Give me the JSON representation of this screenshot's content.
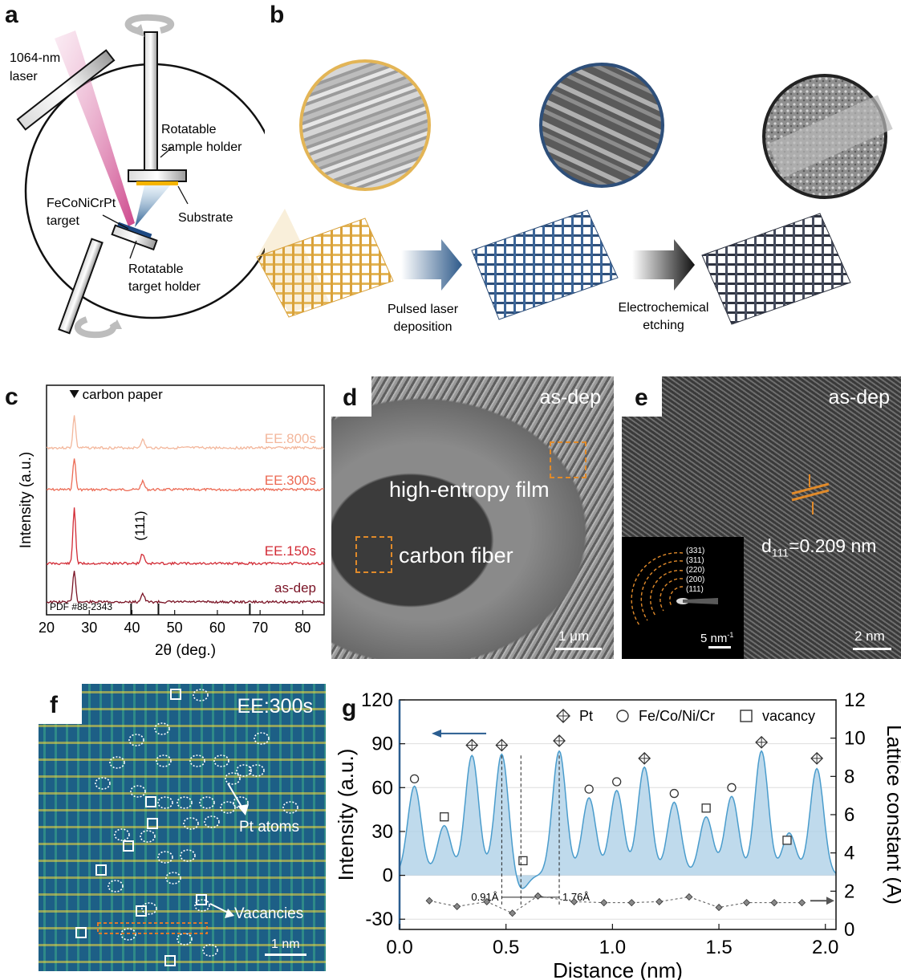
{
  "panels": {
    "a": {
      "label": "a",
      "laser": [
        "1064-nm",
        "laser"
      ],
      "sample_holder": [
        "Rotatable",
        "sample holder"
      ],
      "substrate": "Substrate",
      "target": [
        "FeCoNiCrPt",
        "target"
      ],
      "target_holder": [
        "Rotatable",
        "target holder"
      ]
    },
    "b": {
      "label": "b",
      "step1": [
        "Pulsed laser",
        "deposition"
      ],
      "step2": [
        "Electrochemical",
        "etching"
      ],
      "colors": {
        "gold": "#e3b556",
        "blue": "#2e4f7a",
        "dark": "#2e3340"
      }
    },
    "c": {
      "label": "c"
    },
    "d": {
      "label": "d",
      "tag": "as-dep",
      "film": "high-entropy film",
      "fiber": "carbon fiber",
      "scale": "1 μm"
    },
    "e": {
      "label": "e",
      "tag": "as-dep",
      "spacing_main": "d",
      "spacing_sub": "111",
      "spacing_value": "=0.209 nm",
      "rings": [
        "(331)",
        "(311)",
        "(220)",
        "(200)",
        "(111)"
      ],
      "inset_scale_main": "5 nm",
      "inset_scale_sup": "-1",
      "scale": "2 nm"
    },
    "f": {
      "label": "f",
      "tag": "EE:300s",
      "pt_atoms": "Pt atoms",
      "vacancies": "Vacancies",
      "scale": "1 nm"
    },
    "g": {
      "label": "g"
    }
  },
  "chart_data": [
    {
      "id": "c",
      "type": "line",
      "xlabel": "2θ (deg.)",
      "ylabel": "Intensity (a.u.)",
      "xlim": [
        20,
        85
      ],
      "xticks": [
        20,
        30,
        40,
        50,
        60,
        70,
        80
      ],
      "legend_note": "carbon paper",
      "peak_label": "(111)",
      "reference": {
        "label": "PDF #88-2343",
        "positions": [
          39.8,
          46.2,
          67.6
        ]
      },
      "series": [
        {
          "name": "EE.800s",
          "color": "#f3b79c",
          "peaks": [
            26.5,
            42.5
          ]
        },
        {
          "name": "EE.300s",
          "color": "#ec6b55",
          "peaks": [
            26.5,
            42.5
          ]
        },
        {
          "name": "EE.150s",
          "color": "#d22b35",
          "peaks": [
            26.5,
            42.5
          ]
        },
        {
          "name": "as-dep",
          "color": "#7a1426",
          "peaks": [
            26.5,
            42.5
          ]
        }
      ]
    },
    {
      "id": "g",
      "type": "area",
      "xlabel": "Distance (nm)",
      "ylabel": "Intensity (a.u.)",
      "y2label": "Lattice constant (Å)",
      "xlim": [
        0,
        2.05
      ],
      "ylim": [
        -37,
        120
      ],
      "y2lim": [
        0,
        12
      ],
      "xticks": [
        0.0,
        0.5,
        1.0,
        1.5,
        2.0
      ],
      "yticks": [
        -30,
        0,
        30,
        60,
        90,
        120
      ],
      "y2ticks": [
        0,
        2,
        4,
        6,
        8,
        10,
        12
      ],
      "legend": [
        "Pt",
        "Fe/Co/Ni/Cr",
        "vacancy"
      ],
      "annotations": [
        "0.91Å",
        "1.76Å"
      ],
      "intensity_peaks": [
        {
          "x": 0.07,
          "y": 61
        },
        {
          "x": 0.21,
          "y": 34
        },
        {
          "x": 0.34,
          "y": 82
        },
        {
          "x": 0.48,
          "y": 83
        },
        {
          "x": 0.57,
          "y": -10
        },
        {
          "x": 0.75,
          "y": 85
        },
        {
          "x": 0.89,
          "y": 53
        },
        {
          "x": 1.02,
          "y": 58
        },
        {
          "x": 1.15,
          "y": 74
        },
        {
          "x": 1.29,
          "y": 50
        },
        {
          "x": 1.44,
          "y": 40
        },
        {
          "x": 1.56,
          "y": 54
        },
        {
          "x": 1.7,
          "y": 85
        },
        {
          "x": 1.83,
          "y": 29
        },
        {
          "x": 1.96,
          "y": 73
        }
      ],
      "markers": [
        {
          "x": 0.07,
          "y": 66,
          "kind": "Fe/Co/Ni/Cr"
        },
        {
          "x": 0.21,
          "y": 40,
          "kind": "vacancy"
        },
        {
          "x": 0.34,
          "y": 89,
          "kind": "Pt"
        },
        {
          "x": 0.48,
          "y": 89,
          "kind": "Pt"
        },
        {
          "x": 0.58,
          "y": 10,
          "kind": "vacancy"
        },
        {
          "x": 0.75,
          "y": 92,
          "kind": "Pt"
        },
        {
          "x": 0.89,
          "y": 59,
          "kind": "Fe/Co/Ni/Cr"
        },
        {
          "x": 1.02,
          "y": 64,
          "kind": "Fe/Co/Ni/Cr"
        },
        {
          "x": 1.15,
          "y": 80,
          "kind": "Pt"
        },
        {
          "x": 1.29,
          "y": 56,
          "kind": "Fe/Co/Ni/Cr"
        },
        {
          "x": 1.44,
          "y": 46,
          "kind": "vacancy"
        },
        {
          "x": 1.56,
          "y": 60,
          "kind": "Fe/Co/Ni/Cr"
        },
        {
          "x": 1.7,
          "y": 91,
          "kind": "Pt"
        },
        {
          "x": 1.82,
          "y": 24,
          "kind": "vacancy"
        },
        {
          "x": 1.96,
          "y": 80,
          "kind": "Pt"
        }
      ],
      "lattice_constant": [
        {
          "x": 0.14,
          "y": 1.5
        },
        {
          "x": 0.27,
          "y": 1.2
        },
        {
          "x": 0.41,
          "y": 1.45
        },
        {
          "x": 0.53,
          "y": 0.85
        },
        {
          "x": 0.65,
          "y": 1.75
        },
        {
          "x": 0.82,
          "y": 1.45
        },
        {
          "x": 0.96,
          "y": 1.4
        },
        {
          "x": 1.09,
          "y": 1.4
        },
        {
          "x": 1.22,
          "y": 1.45
        },
        {
          "x": 1.36,
          "y": 1.7
        },
        {
          "x": 1.5,
          "y": 1.15
        },
        {
          "x": 1.63,
          "y": 1.4
        },
        {
          "x": 1.76,
          "y": 1.4
        },
        {
          "x": 1.89,
          "y": 1.4
        }
      ]
    }
  ]
}
